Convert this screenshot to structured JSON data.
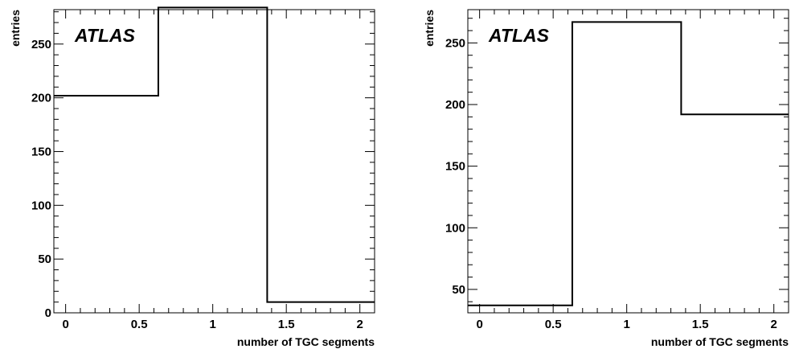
{
  "chart_data": [
    {
      "type": "bar",
      "style": "step-histogram",
      "title": "",
      "annotation": "ATLAS",
      "xlabel": "number of TGC segments",
      "ylabel": "entries",
      "xlim": [
        -0.08,
        2.1
      ],
      "ylim": [
        0,
        282
      ],
      "xticks": [
        0,
        0.5,
        1,
        1.5,
        2
      ],
      "xtick_labels": [
        "0",
        "0.5",
        "1",
        "1.5",
        "2"
      ],
      "yticks": [
        0,
        50,
        100,
        150,
        200,
        250
      ],
      "ytick_labels": [
        "0",
        "50",
        "100",
        "150",
        "200",
        "250"
      ],
      "bin_edges": [
        -0.08,
        0.63,
        1.37,
        2.1
      ],
      "values": [
        202,
        284,
        10
      ],
      "grid": false,
      "legend": "none"
    },
    {
      "type": "bar",
      "style": "step-histogram",
      "title": "",
      "annotation": "ATLAS",
      "xlabel": "number of TGC segments",
      "ylabel": "entries",
      "xlim": [
        -0.08,
        2.1
      ],
      "ylim": [
        31,
        277
      ],
      "xticks": [
        0,
        0.5,
        1,
        1.5,
        2
      ],
      "xtick_labels": [
        "0",
        "0.5",
        "1",
        "1.5",
        "2"
      ],
      "yticks": [
        50,
        100,
        150,
        200,
        250
      ],
      "ytick_labels": [
        "50",
        "100",
        "150",
        "200",
        "250"
      ],
      "bin_edges": [
        -0.08,
        0.63,
        1.37,
        2.1
      ],
      "values": [
        37,
        267,
        192
      ],
      "grid": false,
      "legend": "none"
    }
  ]
}
